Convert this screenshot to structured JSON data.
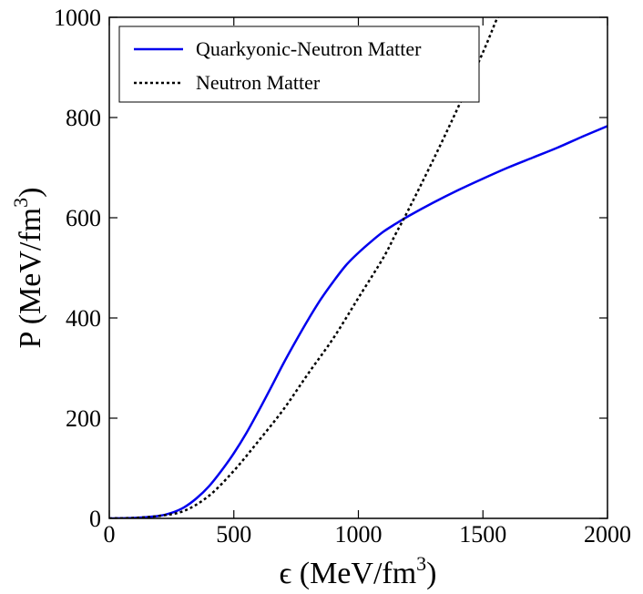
{
  "chart_data": {
    "type": "line",
    "title": "",
    "xlabel": {
      "prefix": "ϵ (MeV/fm",
      "sup": "3",
      "suffix": ")"
    },
    "ylabel": {
      "prefix": "P  (MeV/fm",
      "sup": "3",
      "suffix": ")"
    },
    "xlim": [
      0,
      2000
    ],
    "ylim": [
      0,
      1000
    ],
    "xticks": [
      0,
      500,
      1000,
      1500,
      2000
    ],
    "yticks": [
      0,
      200,
      400,
      600,
      800,
      1000
    ],
    "grid": false,
    "legend_position": "top-left",
    "series": [
      {
        "name": "Quarkyonic-Neutron Matter",
        "color": "#0000ee",
        "style": "solid",
        "x": [
          0,
          100,
          200,
          250,
          300,
          350,
          400,
          450,
          500,
          550,
          600,
          650,
          700,
          750,
          800,
          850,
          900,
          950,
          1000,
          1050,
          1100,
          1150,
          1200,
          1300,
          1400,
          1500,
          1600,
          1700,
          1800,
          1900,
          2000
        ],
        "y": [
          0,
          1,
          5,
          11,
          22,
          40,
          64,
          95,
          130,
          170,
          215,
          262,
          310,
          355,
          398,
          438,
          473,
          505,
          530,
          552,
          572,
          588,
          603,
          630,
          655,
          678,
          700,
          720,
          740,
          762,
          783
        ]
      },
      {
        "name": "Neutron Matter",
        "color": "#000000",
        "style": "dotted",
        "x": [
          0,
          100,
          200,
          300,
          400,
          500,
          600,
          700,
          800,
          900,
          1000,
          1100,
          1150,
          1200,
          1300,
          1400,
          1500,
          1550,
          1560
        ],
        "y": [
          0,
          1,
          5,
          15,
          45,
          95,
          155,
          218,
          290,
          360,
          440,
          520,
          568,
          615,
          715,
          820,
          930,
          990,
          1000
        ]
      }
    ]
  }
}
